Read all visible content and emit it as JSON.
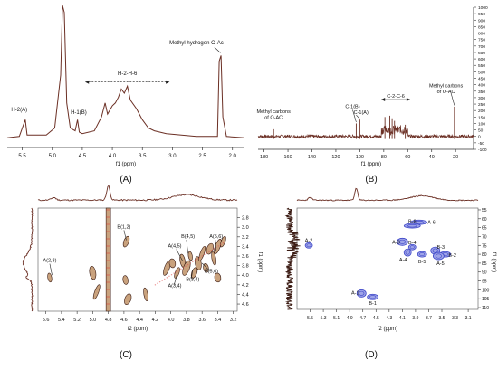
{
  "colors": {
    "spectrum": "#6b2f24",
    "fill2d": "#c9a27d",
    "dark": "#3a1a12",
    "blue": "#3d46c8",
    "blueFill": "#9ea4e8",
    "axis": "#333333"
  },
  "chart_data": [
    {
      "id": "A",
      "type": "line",
      "panel_label": "(A)",
      "xlabel": "f1 (ppm)",
      "xlim": [
        5.75,
        1.8
      ],
      "x_ticks": [
        "5.5",
        "5.0",
        "4.5",
        "4.0",
        "3.5",
        "3.0",
        "2.5",
        "2.0"
      ],
      "x_tick_values": [
        5.5,
        5.0,
        4.5,
        4.0,
        3.5,
        3.0,
        2.5,
        2.0
      ],
      "baseline_points": [
        [
          5.75,
          0.05
        ],
        [
          5.55,
          0.06
        ],
        [
          5.45,
          0.18
        ],
        [
          5.42,
          0.07
        ],
        [
          5.1,
          0.07
        ],
        [
          4.96,
          0.12
        ],
        [
          4.86,
          0.5
        ],
        [
          4.83,
          1.0
        ],
        [
          4.8,
          0.95
        ],
        [
          4.76,
          0.3
        ],
        [
          4.7,
          0.12
        ],
        [
          4.62,
          0.1
        ],
        [
          4.58,
          0.18
        ],
        [
          4.55,
          0.09
        ],
        [
          4.5,
          0.08
        ],
        [
          4.3,
          0.1
        ],
        [
          4.18,
          0.2
        ],
        [
          4.12,
          0.3
        ],
        [
          4.08,
          0.22
        ],
        [
          4.0,
          0.28
        ],
        [
          3.95,
          0.3
        ],
        [
          3.9,
          0.34
        ],
        [
          3.85,
          0.4
        ],
        [
          3.8,
          0.37
        ],
        [
          3.75,
          0.42
        ],
        [
          3.7,
          0.32
        ],
        [
          3.6,
          0.26
        ],
        [
          3.5,
          0.18
        ],
        [
          3.4,
          0.12
        ],
        [
          3.3,
          0.1
        ],
        [
          3.1,
          0.08
        ],
        [
          2.6,
          0.06
        ],
        [
          2.25,
          0.06
        ],
        [
          2.22,
          0.6
        ],
        [
          2.19,
          0.64
        ],
        [
          2.16,
          0.2
        ],
        [
          2.1,
          0.06
        ],
        [
          1.8,
          0.05
        ]
      ],
      "annotations": [
        {
          "text": "H-2(A)",
          "x": 5.55,
          "y": 0.24
        },
        {
          "text": "H-1(B)",
          "x": 4.56,
          "y": 0.22
        },
        {
          "text": "H-2-H-6",
          "x": 3.75,
          "y": 0.5
        },
        {
          "text": "Methyl hydrogen O-Ac",
          "x": 2.6,
          "y": 0.72
        }
      ]
    },
    {
      "id": "B",
      "type": "line",
      "panel_label": "(B)",
      "xlabel": "f1 (ppm)",
      "xlim": [
        185,
        5
      ],
      "ylim": [
        -100,
        1000
      ],
      "x_ticks": [
        "180",
        "160",
        "140",
        "120",
        "100",
        "80",
        "60",
        "40",
        "20"
      ],
      "x_tick_values": [
        180,
        160,
        140,
        120,
        100,
        80,
        60,
        40,
        20
      ],
      "y_ticks": [
        "1000",
        "950",
        "900",
        "850",
        "800",
        "750",
        "700",
        "650",
        "600",
        "550",
        "500",
        "450",
        "400",
        "350",
        "300",
        "250",
        "200",
        "150",
        "100",
        "50",
        "0",
        "-50",
        "-100"
      ],
      "y_tick_values": [
        1000,
        950,
        900,
        850,
        800,
        750,
        700,
        650,
        600,
        550,
        500,
        450,
        400,
        350,
        300,
        250,
        200,
        150,
        100,
        50,
        0,
        -50,
        -100
      ],
      "peaks": [
        {
          "x": 172,
          "y": 55
        },
        {
          "x": 103,
          "y": 100
        },
        {
          "x": 100,
          "y": 130
        },
        {
          "x": 79,
          "y": 150
        },
        {
          "x": 75,
          "y": 160
        },
        {
          "x": 73,
          "y": 140
        },
        {
          "x": 71,
          "y": 120
        },
        {
          "x": 62,
          "y": 90
        },
        {
          "x": 21,
          "y": 230
        }
      ],
      "annotations": [
        {
          "text": "Methyl carbons of O-AC",
          "x": 172,
          "y": 180
        },
        {
          "text": "C-1(B)",
          "x": 106,
          "y": 220
        },
        {
          "text": "C-1(A)",
          "x": 99,
          "y": 175
        },
        {
          "text": "C-2-C-6",
          "x": 70,
          "y": 300
        },
        {
          "text": "Methyl carbons of O-AC",
          "x": 28,
          "y": 380
        }
      ]
    },
    {
      "id": "C",
      "type": "heatmap",
      "panel_label": "(C)",
      "xlabel": "f2 (ppm)",
      "ylabel": "f1 (ppm)",
      "xlim": [
        5.7,
        3.15
      ],
      "ylim": [
        2.6,
        4.75
      ],
      "x_ticks": [
        "5.6",
        "5.4",
        "5.2",
        "5.0",
        "4.8",
        "4.6",
        "4.4",
        "4.2",
        "4.0",
        "3.8",
        "3.6",
        "3.4",
        "3.2"
      ],
      "x_tick_values": [
        5.6,
        5.4,
        5.2,
        5.0,
        4.8,
        4.6,
        4.4,
        4.2,
        4.0,
        3.8,
        3.6,
        3.4,
        3.2
      ],
      "y_ticks": [
        "2.8",
        "3.0",
        "3.2",
        "3.4",
        "3.6",
        "3.8",
        "4.0",
        "4.2",
        "4.4",
        "4.6"
      ],
      "y_tick_values": [
        2.8,
        3.0,
        3.2,
        3.4,
        3.6,
        3.8,
        4.0,
        4.2,
        4.4,
        4.6
      ],
      "cross_peaks": [
        {
          "x": 5.55,
          "y": 4.05
        },
        {
          "x": 4.57,
          "y": 3.3
        },
        {
          "x": 5.0,
          "y": 3.95
        },
        {
          "x": 4.95,
          "y": 4.35
        },
        {
          "x": 4.58,
          "y": 4.1
        },
        {
          "x": 4.55,
          "y": 4.5
        },
        {
          "x": 4.32,
          "y": 4.4
        },
        {
          "x": 4.05,
          "y": 3.85
        },
        {
          "x": 3.98,
          "y": 3.75
        },
        {
          "x": 3.92,
          "y": 3.95
        },
        {
          "x": 3.85,
          "y": 3.7
        },
        {
          "x": 3.8,
          "y": 3.85
        },
        {
          "x": 3.75,
          "y": 3.6
        },
        {
          "x": 3.7,
          "y": 3.95
        },
        {
          "x": 3.65,
          "y": 3.75
        },
        {
          "x": 3.6,
          "y": 3.55
        },
        {
          "x": 3.55,
          "y": 3.85
        },
        {
          "x": 3.5,
          "y": 3.45
        },
        {
          "x": 3.45,
          "y": 3.65
        },
        {
          "x": 3.4,
          "y": 3.4
        },
        {
          "x": 3.4,
          "y": 4.05
        },
        {
          "x": 3.33,
          "y": 3.3
        }
      ],
      "diagonal_band_x": 4.8,
      "annotations": [
        {
          "text": "B(1,2)",
          "x": 4.6,
          "y": 3.02
        },
        {
          "text": "B(4,5)",
          "x": 3.78,
          "y": 3.22
        },
        {
          "text": "A(5,6)",
          "x": 3.42,
          "y": 3.22
        },
        {
          "text": "A(4,5)",
          "x": 3.95,
          "y": 3.42
        },
        {
          "text": "A(2,3)",
          "x": 5.55,
          "y": 3.72
        },
        {
          "text": "B(5,6)",
          "x": 3.48,
          "y": 3.95
        },
        {
          "text": "B(3,4)",
          "x": 3.72,
          "y": 4.12
        },
        {
          "text": "A(3,4)",
          "x": 3.95,
          "y": 4.25
        }
      ]
    },
    {
      "id": "D",
      "type": "heatmap",
      "panel_label": "(D)",
      "xlabel": "f2 (ppm)",
      "ylabel": "f1 (ppm)",
      "xlim": [
        5.7,
        2.95
      ],
      "ylim": [
        54,
        111
      ],
      "x_ticks": [
        "5.5",
        "5.3",
        "5.1",
        "4.9",
        "4.7",
        "4.5",
        "4.3",
        "4.1",
        "3.9",
        "3.7",
        "3.5",
        "3.3",
        "3.1"
      ],
      "x_tick_values": [
        5.5,
        5.3,
        5.1,
        4.9,
        4.7,
        4.5,
        4.3,
        4.1,
        3.9,
        3.7,
        3.5,
        3.3,
        3.1
      ],
      "y_ticks": [
        "55",
        "60",
        "65",
        "70",
        "75",
        "80",
        "85",
        "90",
        "95",
        "100",
        "105",
        "110"
      ],
      "y_tick_values": [
        55,
        60,
        65,
        70,
        75,
        80,
        85,
        90,
        95,
        100,
        105,
        110
      ],
      "cross_peaks": [
        {
          "label": "A-2",
          "x": 5.52,
          "y": 75
        },
        {
          "label": "A-1",
          "x": 4.72,
          "y": 102
        },
        {
          "label": "B-1",
          "x": 4.55,
          "y": 104
        },
        {
          "label": "A-6",
          "x": 3.85,
          "y": 62
        },
        {
          "label": "B-6",
          "x": 3.95,
          "y": 64
        },
        {
          "label": "A-3",
          "x": 4.1,
          "y": 73
        },
        {
          "label": "B-4",
          "x": 3.95,
          "y": 76
        },
        {
          "label": "B-3",
          "x": 3.6,
          "y": 78
        },
        {
          "label": "B-2",
          "x": 3.45,
          "y": 80
        },
        {
          "label": "A-4",
          "x": 4.02,
          "y": 79
        },
        {
          "label": "B-5",
          "x": 3.8,
          "y": 80
        },
        {
          "label": "A-5",
          "x": 3.55,
          "y": 81
        }
      ]
    }
  ]
}
